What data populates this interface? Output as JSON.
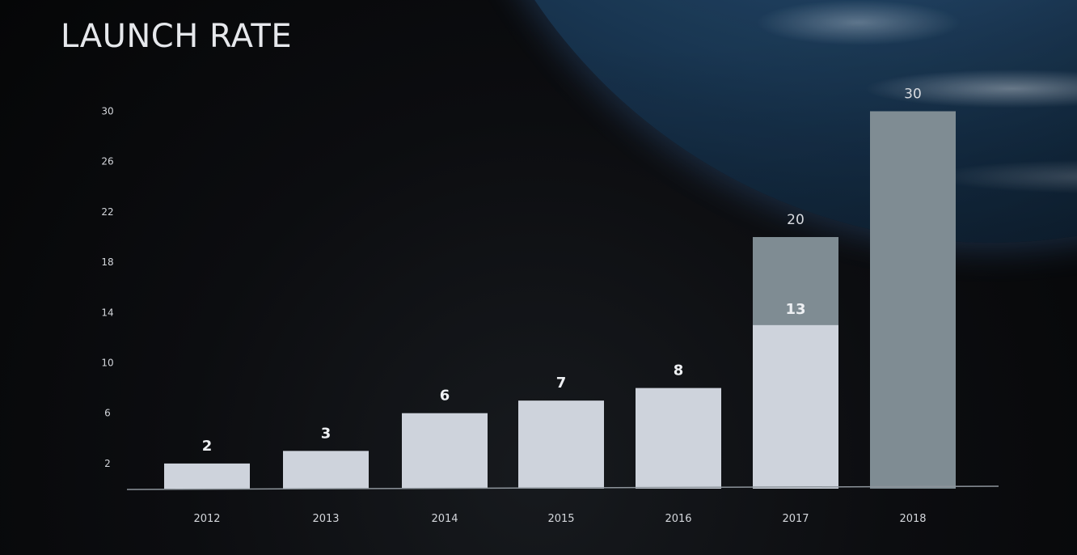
{
  "chart_data": {
    "type": "bar",
    "title": "LAUNCH RATE",
    "xlabel": "",
    "ylabel": "",
    "categories": [
      "2012",
      "2013",
      "2014",
      "2015",
      "2016",
      "2017",
      "2018"
    ],
    "yticks": [
      2,
      6,
      10,
      14,
      18,
      22,
      26,
      30
    ],
    "ylim": [
      0,
      32
    ],
    "series": [
      {
        "values": [
          2,
          3,
          6,
          7,
          8,
          13,
          null
        ],
        "labels": [
          "2",
          "3",
          "6",
          "7",
          "8",
          "13",
          ""
        ],
        "color": "#ced3dc"
      },
      {
        "values": [
          null,
          null,
          null,
          null,
          null,
          20,
          30
        ],
        "labels": [
          "",
          "",
          "",
          "",
          "",
          "20",
          "30"
        ],
        "color": "#7f8c93"
      }
    ],
    "grid": false,
    "legend": "none"
  }
}
